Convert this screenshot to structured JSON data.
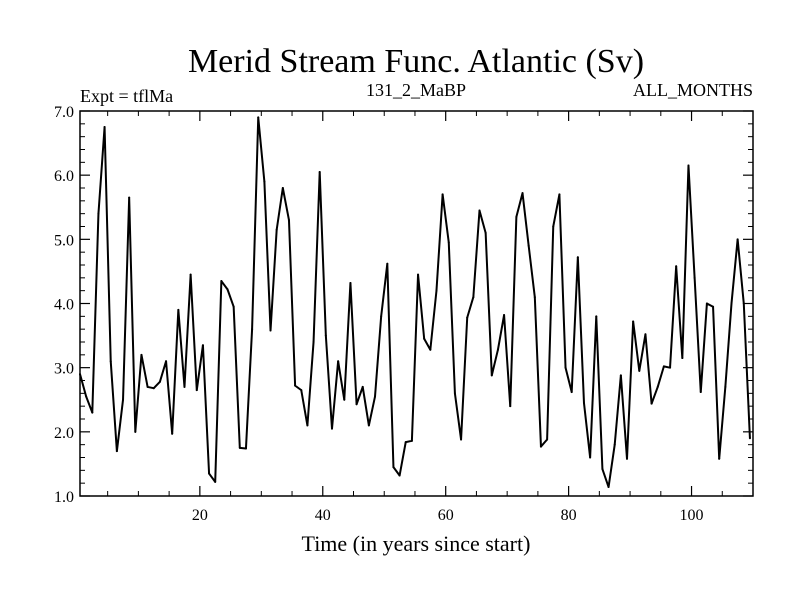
{
  "chart_data": {
    "type": "line",
    "title": "Merid Stream Func. Atlantic (Sv)",
    "left_label": "Expt = tflMa",
    "center_label": "131_2_MaBP",
    "right_label": "ALL_MONTHS",
    "xlabel": "Time (in years since start)",
    "ylabel": "",
    "xlim": [
      0.5,
      110
    ],
    "ylim": [
      1.0,
      7.0
    ],
    "x_ticks": [
      20,
      40,
      60,
      80,
      100
    ],
    "x_tick_labels": [
      "20",
      "40",
      "60",
      "80",
      "100"
    ],
    "y_ticks": [
      1,
      2,
      3,
      4,
      5,
      6,
      7
    ],
    "y_tick_labels": [
      "1.0",
      "2.0",
      "3.0",
      "4.0",
      "5.0",
      "6.0",
      "7.0"
    ],
    "grid": false,
    "line_color": "#000000",
    "x_start": 0.5,
    "x_step": 1,
    "values": [
      2.9,
      2.55,
      2.3,
      5.4,
      6.75,
      3.1,
      1.7,
      2.5,
      5.65,
      2.0,
      3.2,
      2.7,
      2.68,
      2.78,
      3.1,
      1.97,
      3.9,
      2.7,
      4.45,
      2.65,
      3.35,
      1.35,
      1.22,
      4.35,
      4.22,
      3.95,
      1.75,
      1.74,
      3.6,
      6.9,
      5.9,
      3.58,
      5.15,
      5.8,
      5.3,
      2.72,
      2.65,
      2.1,
      3.4,
      6.05,
      3.5,
      2.05,
      3.1,
      2.5,
      4.32,
      2.43,
      2.7,
      2.1,
      2.55,
      3.8,
      4.62,
      1.45,
      1.32,
      1.84,
      1.86,
      4.45,
      3.45,
      3.28,
      4.2,
      5.7,
      4.95,
      2.6,
      1.88,
      3.78,
      4.1,
      5.45,
      5.1,
      2.88,
      3.28,
      3.82,
      2.4,
      5.35,
      5.72,
      4.9,
      4.1,
      1.77,
      1.88,
      5.2,
      5.7,
      3.0,
      2.62,
      4.72,
      2.45,
      1.6,
      3.8,
      1.42,
      1.14,
      1.8,
      2.88,
      1.58,
      3.72,
      2.95,
      3.52,
      2.44,
      2.7,
      3.02,
      3.0,
      4.58,
      3.15,
      6.15,
      4.4,
      2.62,
      4.0,
      3.95,
      1.58,
      2.7,
      4.0,
      5.0,
      4.0,
      1.9
    ]
  }
}
